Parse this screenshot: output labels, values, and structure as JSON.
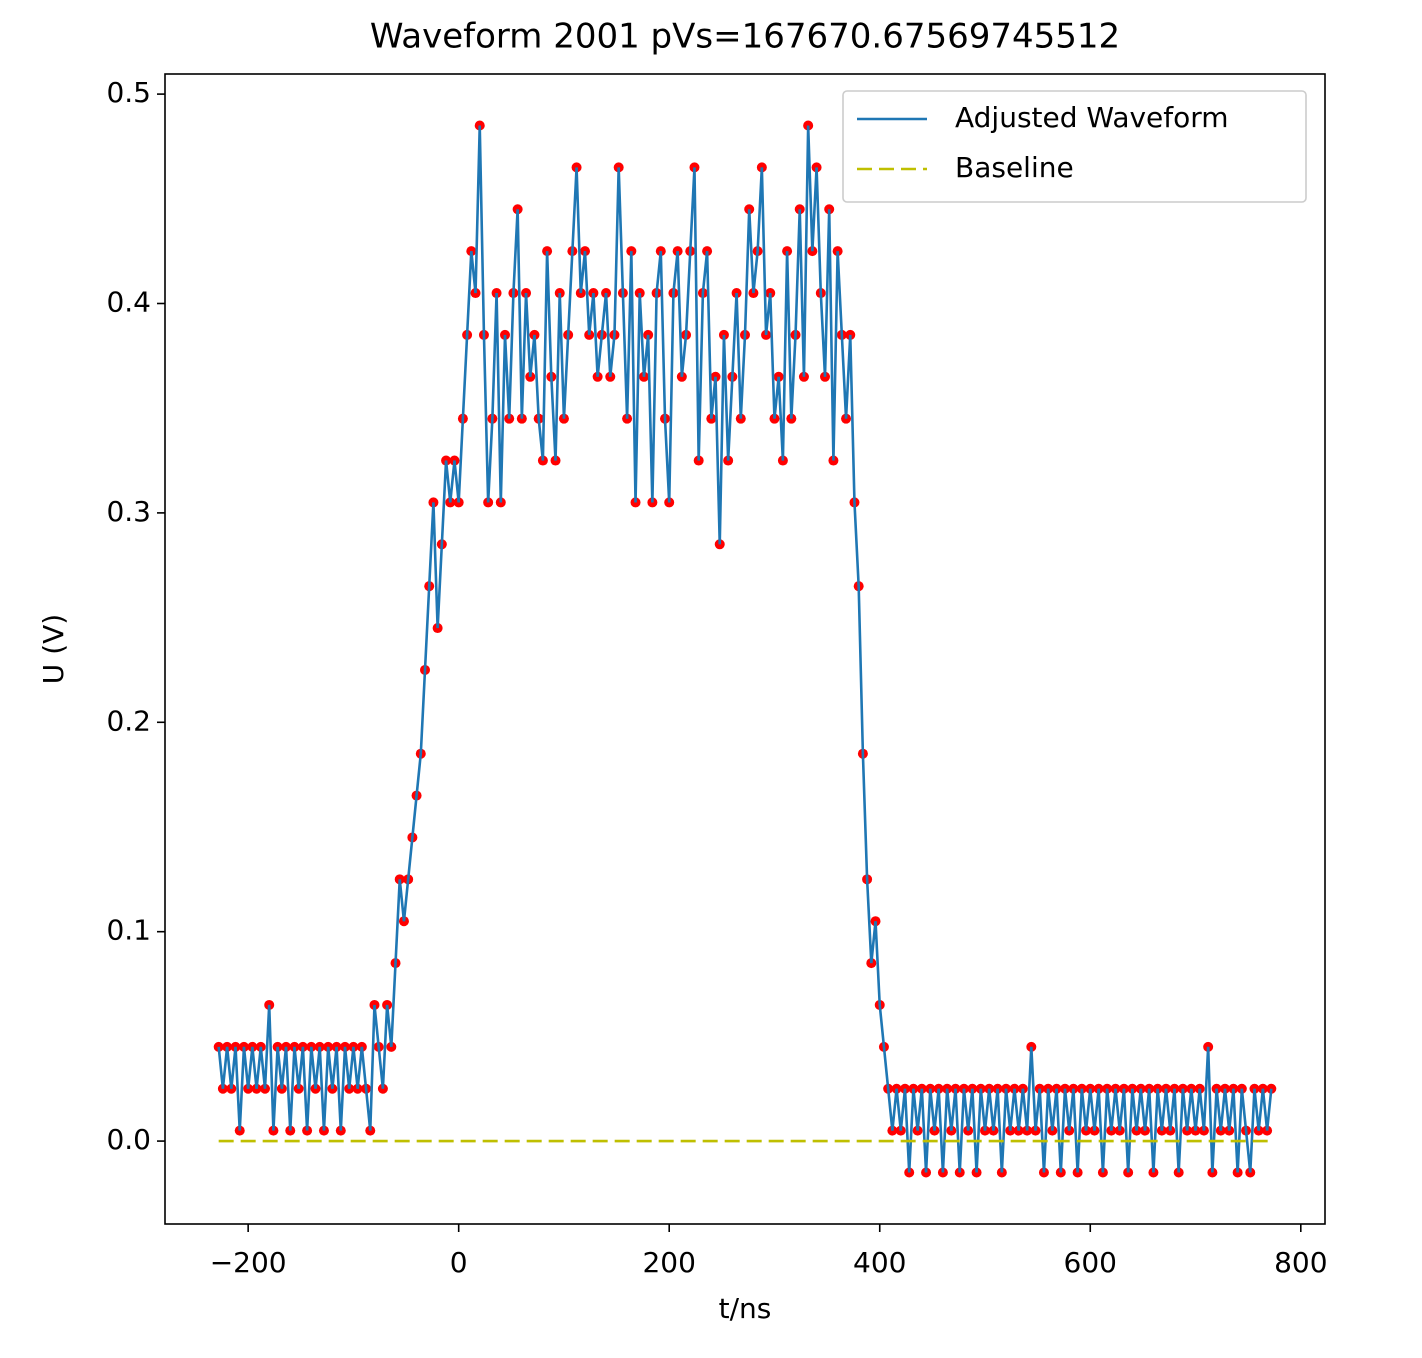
{
  "chart_data": {
    "type": "line",
    "title": "Waveform 2001 pVs=167670.67569745512",
    "xlabel": "t/ns",
    "ylabel": "U (V)",
    "xlim": [
      -279,
      823
    ],
    "ylim": [
      -0.0396,
      0.5096
    ],
    "xticks": [
      {
        "value": -200,
        "label": "−200"
      },
      0,
      200,
      400,
      600,
      800
    ],
    "yticks": [
      {
        "value": 0,
        "label": "0.0"
      },
      0.1,
      0.2,
      0.3,
      0.4,
      0.5
    ],
    "legend": "upper right",
    "series": [
      {
        "name": "Adjusted Waveform",
        "color": "#1f77b4",
        "marker_color": "#ff0000",
        "style": "solid",
        "x": [
          -228,
          -224,
          -220,
          -216,
          -212,
          -208,
          -204,
          -200,
          -196,
          -192,
          -188,
          -184,
          -180,
          -176,
          -172,
          -168,
          -164,
          -160,
          -156,
          -152,
          -148,
          -144,
          -140,
          -136,
          -132,
          -128,
          -124,
          -120,
          -116,
          -112,
          -108,
          -104,
          -100,
          -96,
          -92,
          -88,
          -84,
          -80,
          -76,
          -72,
          -68,
          -64,
          -60,
          -56,
          -52,
          -48,
          -44,
          -40,
          -36,
          -32,
          -28,
          -24,
          -20,
          -16,
          -12,
          -8,
          -4,
          0,
          4,
          8,
          12,
          16,
          20,
          24,
          28,
          32,
          36,
          40,
          44,
          48,
          52,
          56,
          60,
          64,
          68,
          72,
          76,
          80,
          84,
          88,
          92,
          96,
          100,
          104,
          108,
          112,
          116,
          120,
          124,
          128,
          132,
          136,
          140,
          144,
          148,
          152,
          156,
          160,
          164,
          168,
          172,
          176,
          180,
          184,
          188,
          192,
          196,
          200,
          204,
          208,
          212,
          216,
          220,
          224,
          228,
          232,
          236,
          240,
          244,
          248,
          252,
          256,
          260,
          264,
          268,
          272,
          276,
          280,
          284,
          288,
          292,
          296,
          300,
          304,
          308,
          312,
          316,
          320,
          324,
          328,
          332,
          336,
          340,
          344,
          348,
          352,
          356,
          360,
          364,
          368,
          372,
          376,
          380,
          384,
          388,
          392,
          396,
          400,
          404,
          408,
          412,
          416,
          420,
          424,
          428,
          432,
          436,
          440,
          444,
          448,
          452,
          456,
          460,
          464,
          468,
          472,
          476,
          480,
          484,
          488,
          492,
          496,
          500,
          504,
          508,
          512,
          516,
          520,
          524,
          528,
          532,
          536,
          540,
          544,
          548,
          552,
          556,
          560,
          564,
          568,
          572,
          576,
          580,
          584,
          588,
          592,
          596,
          600,
          604,
          608,
          612,
          616,
          620,
          624,
          628,
          632,
          636,
          640,
          644,
          648,
          652,
          656,
          660,
          664,
          668,
          672,
          676,
          680,
          684,
          688,
          692,
          696,
          700,
          704,
          708,
          712,
          716,
          720,
          724,
          728,
          732,
          736,
          740,
          744,
          748,
          752,
          756,
          760,
          764,
          768,
          772
        ],
        "values": [
          0.045,
          0.025,
          0.045,
          0.025,
          0.045,
          0.005,
          0.045,
          0.025,
          0.045,
          0.025,
          0.045,
          0.025,
          0.065,
          0.005,
          0.045,
          0.025,
          0.045,
          0.005,
          0.045,
          0.025,
          0.045,
          0.005,
          0.045,
          0.025,
          0.045,
          0.005,
          0.045,
          0.025,
          0.045,
          0.005,
          0.045,
          0.025,
          0.045,
          0.025,
          0.045,
          0.025,
          0.005,
          0.065,
          0.045,
          0.025,
          0.065,
          0.045,
          0.085,
          0.125,
          0.105,
          0.125,
          0.145,
          0.165,
          0.185,
          0.225,
          0.265,
          0.305,
          0.245,
          0.285,
          0.325,
          0.305,
          0.325,
          0.305,
          0.345,
          0.385,
          0.425,
          0.405,
          0.485,
          0.385,
          0.305,
          0.345,
          0.405,
          0.305,
          0.385,
          0.345,
          0.405,
          0.445,
          0.345,
          0.405,
          0.365,
          0.385,
          0.345,
          0.325,
          0.425,
          0.365,
          0.325,
          0.405,
          0.345,
          0.385,
          0.425,
          0.465,
          0.405,
          0.425,
          0.385,
          0.405,
          0.365,
          0.385,
          0.405,
          0.365,
          0.385,
          0.465,
          0.405,
          0.345,
          0.425,
          0.305,
          0.405,
          0.365,
          0.385,
          0.305,
          0.405,
          0.425,
          0.345,
          0.305,
          0.405,
          0.425,
          0.365,
          0.385,
          0.425,
          0.465,
          0.325,
          0.405,
          0.425,
          0.345,
          0.365,
          0.285,
          0.385,
          0.325,
          0.365,
          0.405,
          0.345,
          0.385,
          0.445,
          0.405,
          0.425,
          0.465,
          0.385,
          0.405,
          0.345,
          0.365,
          0.325,
          0.425,
          0.345,
          0.385,
          0.445,
          0.365,
          0.485,
          0.425,
          0.465,
          0.405,
          0.365,
          0.445,
          0.325,
          0.425,
          0.385,
          0.345,
          0.385,
          0.305,
          0.265,
          0.185,
          0.125,
          0.085,
          0.105,
          0.065,
          0.045,
          0.025,
          0.005,
          0.025,
          0.005,
          0.025,
          -0.015,
          0.025,
          0.005,
          0.025,
          -0.015,
          0.025,
          0.005,
          0.025,
          -0.015,
          0.025,
          0.005,
          0.025,
          -0.015,
          0.025,
          0.005,
          0.025,
          -0.015,
          0.025,
          0.005,
          0.025,
          0.005,
          0.025,
          -0.015,
          0.025,
          0.005,
          0.025,
          0.005,
          0.025,
          0.005,
          0.045,
          0.005,
          0.025,
          -0.015,
          0.025,
          0.005,
          0.025,
          -0.015,
          0.025,
          0.005,
          0.025,
          -0.015,
          0.025,
          0.005,
          0.025,
          0.005,
          0.025,
          -0.015,
          0.025,
          0.005,
          0.025,
          0.005,
          0.025,
          -0.015,
          0.025,
          0.005,
          0.025,
          0.005,
          0.025,
          -0.015,
          0.025,
          0.005,
          0.025,
          0.005,
          0.025,
          -0.015,
          0.025,
          0.005,
          0.025,
          0.005,
          0.025,
          0.005,
          0.045,
          -0.015,
          0.025,
          0.005,
          0.025,
          0.005,
          0.025,
          -0.015,
          0.025,
          0.005,
          -0.015,
          0.025,
          0.005,
          0.025,
          0.005,
          0.025
        ]
      },
      {
        "name": "Baseline",
        "color": "#bfbf00",
        "style": "dashed",
        "x": [
          -228,
          772
        ],
        "values": [
          0,
          0
        ]
      }
    ]
  }
}
